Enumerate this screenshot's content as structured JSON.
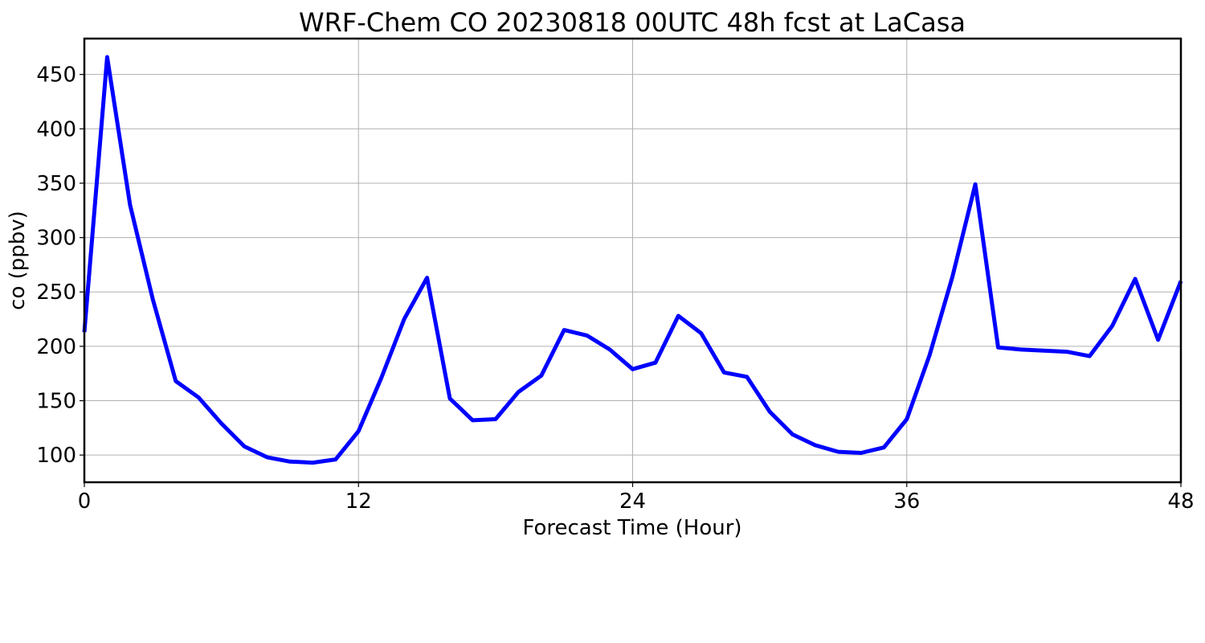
{
  "chart_data": {
    "type": "line",
    "title": "WRF-Chem CO  20230818 00UTC 48h fcst at LaCasa",
    "xlabel": "Forecast Time (Hour)",
    "ylabel": "co  (ppbv)",
    "xlim": [
      0,
      48
    ],
    "ylim": [
      75,
      483
    ],
    "xticks": [
      0,
      12,
      24,
      36,
      48
    ],
    "yticks": [
      100,
      150,
      200,
      250,
      300,
      350,
      400,
      450
    ],
    "grid": true,
    "line_color": "#0000ff",
    "series": [
      {
        "x": [
          0,
          1,
          2,
          3,
          4,
          5,
          6,
          7,
          8,
          9,
          10,
          11,
          12,
          13,
          14,
          15,
          16,
          17,
          18,
          19,
          20,
          21,
          22,
          23,
          24,
          25,
          26,
          27,
          28,
          29,
          30,
          31,
          32,
          33,
          34,
          35,
          36,
          37,
          38,
          39,
          40,
          41,
          42,
          43,
          44,
          45,
          46,
          47,
          48
        ],
        "values": [
          213,
          466,
          330,
          243,
          168,
          153,
          129,
          108,
          98,
          94,
          93,
          96,
          122,
          171,
          225,
          263,
          152,
          132,
          133,
          158,
          173,
          215,
          210,
          197,
          179,
          185,
          228,
          212,
          176,
          172,
          140,
          119,
          109,
          103,
          102,
          107,
          133,
          192,
          264,
          349,
          199,
          197,
          196,
          195,
          191,
          219,
          262,
          206,
          260
        ]
      }
    ]
  }
}
